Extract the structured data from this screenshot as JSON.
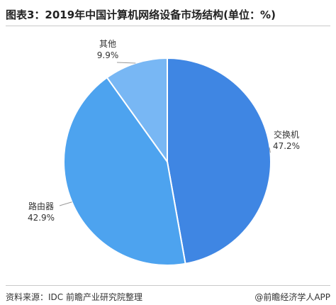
{
  "title": "图表3：2019年中国计算机网络设备市场结构(单位：%)",
  "footer": {
    "source": "资料来源：IDC 前瞻产业研究院整理",
    "credit": "@前瞻经济学人APP"
  },
  "colors": {
    "slice_1": "#3f86e3",
    "slice_2": "#4da3ef",
    "slice_3": "#78b7f4",
    "border": "#ffffff",
    "leader": "#9a9a9a"
  },
  "chart_data": {
    "type": "pie",
    "title": "图表3：2019年中国计算机网络设备市场结构(单位：%)",
    "categories": [
      "交换机",
      "路由器",
      "其他"
    ],
    "values": [
      47.2,
      42.9,
      9.9
    ],
    "value_labels": [
      "47.2%",
      "42.9%",
      "9.9%"
    ],
    "start_angle": "12 o'clock",
    "direction": "clockwise",
    "labels": "outside with leader lines"
  }
}
